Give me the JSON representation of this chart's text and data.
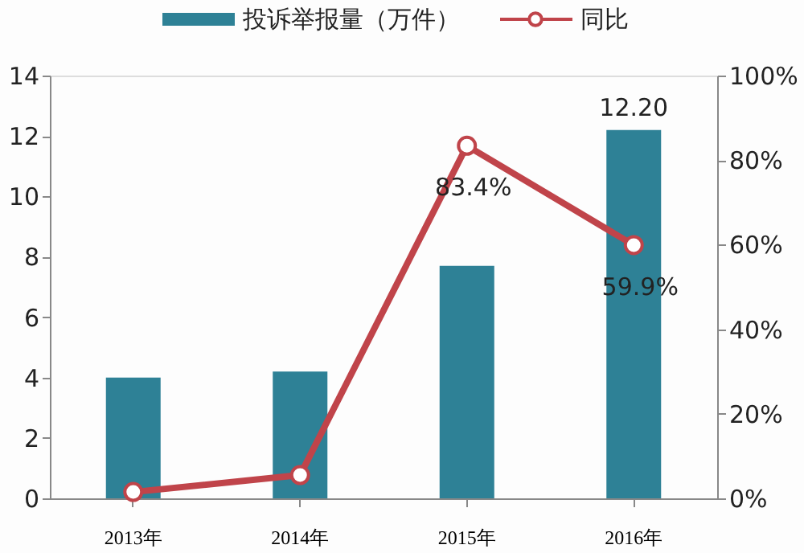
{
  "chart_data": {
    "type": "bar",
    "categories": [
      "2013年",
      "2014年",
      "2015年",
      "2016年"
    ],
    "series": [
      {
        "name": "投诉举报量（万件）",
        "color": "#2e8196",
        "values": [
          4.0,
          4.2,
          7.7,
          12.2
        ],
        "value_labels": [
          null,
          null,
          null,
          "12.20"
        ]
      },
      {
        "name": "同比",
        "type": "line",
        "axis": "y2",
        "color": "#c0444a",
        "marker": "circle",
        "values": [
          1.5,
          5.5,
          83.4,
          59.9
        ],
        "value_labels": [
          null,
          null,
          "83.4%",
          "59.9%"
        ]
      }
    ],
    "ylim": [
      0,
      14
    ],
    "yticks": [
      0,
      2,
      4,
      6,
      8,
      10,
      12,
      14
    ],
    "y2lim": [
      0,
      100
    ],
    "y2ticks": [
      {
        "value": 0,
        "label": "0%"
      },
      {
        "value": 20,
        "label": "20%"
      },
      {
        "value": 40,
        "label": "40%"
      },
      {
        "value": 60,
        "label": "60%"
      },
      {
        "value": 80,
        "label": "80%"
      },
      {
        "value": 100,
        "label": "100%"
      }
    ],
    "grid": false,
    "legend": "top"
  }
}
